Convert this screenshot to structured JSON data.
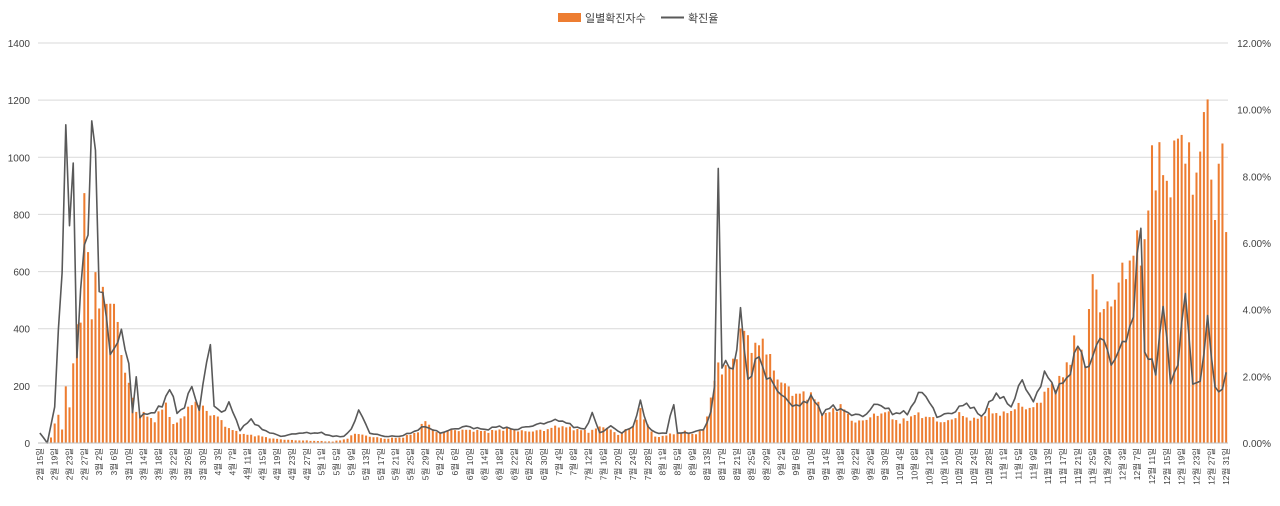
{
  "chart_data": {
    "type": "bar",
    "title": "",
    "series": [
      {
        "name": "일별확진자수",
        "kind": "bar",
        "axis": "left",
        "color": "#ED7D31"
      },
      {
        "name": "확진율",
        "kind": "line",
        "axis": "right",
        "color": "#595959"
      }
    ],
    "left_axis": {
      "min": 0,
      "max": 1400,
      "ticks": [
        "0",
        "200",
        "400",
        "600",
        "800",
        "1000",
        "1200",
        "1400"
      ]
    },
    "right_axis": {
      "min": 0,
      "max": 0.12,
      "ticks": [
        "0.00%",
        "2.00%",
        "4.00%",
        "6.00%",
        "8.00%",
        "10.00%",
        "12.00%"
      ]
    },
    "start_date": "2020-02-15",
    "end_date": "2020-12-31",
    "x_tick_labels": [
      "2월 15일",
      "2월 19일",
      "2월 23일",
      "2월 27일",
      "3월 2일",
      "3월 6일",
      "3월 10일",
      "3월 14일",
      "3월 18일",
      "3월 22일",
      "3월 26일",
      "3월 30일",
      "4월 3일",
      "4월 7일",
      "4월 11일",
      "4월 15일",
      "4월 19일",
      "4월 23일",
      "4월 27일",
      "5월 1일",
      "5월 5일",
      "5월 9일",
      "5월 13일",
      "5월 17일",
      "5월 21일",
      "5월 25일",
      "5월 29일",
      "6월 2일",
      "6월 6일",
      "6월 10일",
      "6월 14일",
      "6월 18일",
      "6월 22일",
      "6월 26일",
      "6월 30일",
      "7월 4일",
      "7월 8일",
      "7월 12일",
      "7월 16일",
      "7월 20일",
      "7월 24일",
      "7월 28일",
      "8월 1일",
      "8월 5일",
      "8월 9일",
      "8월 13일",
      "8월 17일",
      "8월 21일",
      "8월 25일",
      "8월 29일",
      "9월 2일",
      "9월 6일",
      "9월 10일",
      "9월 14일",
      "9월 18일",
      "9월 22일",
      "9월 26일",
      "9월 30일",
      "10월 4일",
      "10월 8일",
      "10월 12일",
      "10월 16일",
      "10월 20일",
      "10월 24일",
      "10월 28일",
      "11월 1일",
      "11월 5일",
      "11월 9일",
      "11월 13일",
      "11월 17일",
      "11월 21일",
      "11월 25일",
      "11월 29일",
      "12월 3일",
      "12월 7일",
      "12월 11일",
      "12월 15일",
      "12월 19일",
      "12월 23일",
      "12월 27일",
      "12월 31일"
    ],
    "daily_cases_knots": [
      [
        "2020-02-15",
        0
      ],
      [
        "2020-02-17",
        0
      ],
      [
        "2020-02-18",
        20
      ],
      [
        "2020-02-19",
        70
      ],
      [
        "2020-02-20",
        90
      ],
      [
        "2020-02-21",
        50
      ],
      [
        "2020-02-22",
        200
      ],
      [
        "2020-02-23",
        130
      ],
      [
        "2020-02-24",
        250
      ],
      [
        "2020-02-25",
        450
      ],
      [
        "2020-02-26",
        420
      ],
      [
        "2020-02-27",
        910
      ],
      [
        "2020-02-28",
        600
      ],
      [
        "2020-02-29",
        470
      ],
      [
        "2020-03-01",
        600
      ],
      [
        "2020-03-02",
        480
      ],
      [
        "2020-03-04",
        520
      ],
      [
        "2020-03-06",
        480
      ],
      [
        "2020-03-08",
        320
      ],
      [
        "2020-03-10",
        200
      ],
      [
        "2020-03-12",
        110
      ],
      [
        "2020-03-14",
        100
      ],
      [
        "2020-03-17",
        80
      ],
      [
        "2020-03-20",
        140
      ],
      [
        "2020-03-22",
        60
      ],
      [
        "2020-03-25",
        100
      ],
      [
        "2020-03-28",
        150
      ],
      [
        "2020-03-31",
        110
      ],
      [
        "2020-04-03",
        90
      ],
      [
        "2020-04-06",
        50
      ],
      [
        "2020-04-10",
        30
      ],
      [
        "2020-04-14",
        25
      ],
      [
        "2020-04-18",
        15
      ],
      [
        "2020-04-23",
        10
      ],
      [
        "2020-04-28",
        8
      ],
      [
        "2020-05-04",
        5
      ],
      [
        "2020-05-08",
        15
      ],
      [
        "2020-05-10",
        35
      ],
      [
        "2020-05-13",
        25
      ],
      [
        "2020-05-18",
        15
      ],
      [
        "2020-05-23",
        20
      ],
      [
        "2020-05-27",
        40
      ],
      [
        "2020-05-29",
        80
      ],
      [
        "2020-06-01",
        35
      ],
      [
        "2020-06-05",
        45
      ],
      [
        "2020-06-10",
        45
      ],
      [
        "2020-06-15",
        40
      ],
      [
        "2020-06-20",
        50
      ],
      [
        "2020-06-25",
        40
      ],
      [
        "2020-06-30",
        45
      ],
      [
        "2020-07-04",
        60
      ],
      [
        "2020-07-08",
        50
      ],
      [
        "2020-07-12",
        40
      ],
      [
        "2020-07-16",
        60
      ],
      [
        "2020-07-20",
        30
      ],
      [
        "2020-07-24",
        60
      ],
      [
        "2020-07-26",
        110
      ],
      [
        "2020-07-30",
        20
      ],
      [
        "2020-08-03",
        30
      ],
      [
        "2020-08-07",
        40
      ],
      [
        "2020-08-10",
        30
      ],
      [
        "2020-08-12",
        50
      ],
      [
        "2020-08-14",
        150
      ],
      [
        "2020-08-16",
        280
      ],
      [
        "2020-08-18",
        250
      ],
      [
        "2020-08-20",
        290
      ],
      [
        "2020-08-23",
        400
      ],
      [
        "2020-08-26",
        320
      ],
      [
        "2020-08-28",
        370
      ],
      [
        "2020-08-31",
        250
      ],
      [
        "2020-09-03",
        200
      ],
      [
        "2020-09-06",
        170
      ],
      [
        "2020-09-10",
        170
      ],
      [
        "2020-09-14",
        100
      ],
      [
        "2020-09-18",
        130
      ],
      [
        "2020-09-22",
        70
      ],
      [
        "2020-09-26",
        90
      ],
      [
        "2020-09-30",
        110
      ],
      [
        "2020-10-04",
        70
      ],
      [
        "2020-10-08",
        100
      ],
      [
        "2020-10-12",
        90
      ],
      [
        "2020-10-16",
        70
      ],
      [
        "2020-10-20",
        100
      ],
      [
        "2020-10-24",
        80
      ],
      [
        "2020-10-28",
        110
      ],
      [
        "2020-11-01",
        100
      ],
      [
        "2020-11-05",
        130
      ],
      [
        "2020-11-09",
        120
      ],
      [
        "2020-11-13",
        190
      ],
      [
        "2020-11-17",
        230
      ],
      [
        "2020-11-20",
        350
      ],
      [
        "2020-11-23",
        300
      ],
      [
        "2020-11-25",
        580
      ],
      [
        "2020-11-28",
        450
      ],
      [
        "2020-12-01",
        520
      ],
      [
        "2020-12-04",
        620
      ],
      [
        "2020-12-07",
        680
      ],
      [
        "2020-12-09",
        700
      ],
      [
        "2020-12-11",
        950
      ],
      [
        "2020-12-13",
        1030
      ],
      [
        "2020-12-15",
        850
      ],
      [
        "2020-12-17",
        1050
      ],
      [
        "2020-12-19",
        1030
      ],
      [
        "2020-12-21",
        1070
      ],
      [
        "2020-12-22",
        820
      ],
      [
        "2020-12-24",
        1060
      ],
      [
        "2020-12-25",
        1210
      ],
      [
        "2020-12-26",
        1100
      ],
      [
        "2020-12-27",
        950
      ],
      [
        "2020-12-28",
        790
      ],
      [
        "2020-12-29",
        1040
      ],
      [
        "2020-12-30",
        940
      ],
      [
        "2020-12-31",
        780
      ]
    ],
    "positivity_rate_knots": [
      [
        "2020-02-15",
        0.003
      ],
      [
        "2020-02-17",
        0.0
      ],
      [
        "2020-02-19",
        0.011
      ],
      [
        "2020-02-21",
        0.053
      ],
      [
        "2020-02-22",
        0.096
      ],
      [
        "2020-02-23",
        0.067
      ],
      [
        "2020-02-24",
        0.078
      ],
      [
        "2020-02-25",
        0.027
      ],
      [
        "2020-02-26",
        0.046
      ],
      [
        "2020-02-27",
        0.061
      ],
      [
        "2020-02-28",
        0.058
      ],
      [
        "2020-02-29",
        0.102
      ],
      [
        "2020-03-01",
        0.088
      ],
      [
        "2020-03-02",
        0.046
      ],
      [
        "2020-03-04",
        0.039
      ],
      [
        "2020-03-05",
        0.027
      ],
      [
        "2020-03-07",
        0.029
      ],
      [
        "2020-03-08",
        0.035
      ],
      [
        "2020-03-10",
        0.023
      ],
      [
        "2020-03-11",
        0.009
      ],
      [
        "2020-03-12",
        0.02
      ],
      [
        "2020-03-13",
        0.008
      ],
      [
        "2020-03-16",
        0.009
      ],
      [
        "2020-03-19",
        0.011
      ],
      [
        "2020-03-21",
        0.017
      ],
      [
        "2020-03-23",
        0.009
      ],
      [
        "2020-03-25",
        0.011
      ],
      [
        "2020-03-27",
        0.017
      ],
      [
        "2020-03-29",
        0.01
      ],
      [
        "2020-04-01",
        0.031
      ],
      [
        "2020-04-02",
        0.011
      ],
      [
        "2020-04-04",
        0.009
      ],
      [
        "2020-04-06",
        0.012
      ],
      [
        "2020-04-09",
        0.004
      ],
      [
        "2020-04-12",
        0.007
      ],
      [
        "2020-04-15",
        0.004
      ],
      [
        "2020-04-20",
        0.002
      ],
      [
        "2020-04-25",
        0.003
      ],
      [
        "2020-05-01",
        0.003
      ],
      [
        "2020-05-04",
        0.002
      ],
      [
        "2020-05-07",
        0.002
      ],
      [
        "2020-05-09",
        0.004
      ],
      [
        "2020-05-11",
        0.01
      ],
      [
        "2020-05-14",
        0.003
      ],
      [
        "2020-05-18",
        0.002
      ],
      [
        "2020-05-22",
        0.002
      ],
      [
        "2020-05-25",
        0.003
      ],
      [
        "2020-05-29",
        0.005
      ],
      [
        "2020-06-02",
        0.003
      ],
      [
        "2020-06-05",
        0.004
      ],
      [
        "2020-06-09",
        0.005
      ],
      [
        "2020-06-14",
        0.004
      ],
      [
        "2020-06-18",
        0.005
      ],
      [
        "2020-06-22",
        0.004
      ],
      [
        "2020-06-26",
        0.005
      ],
      [
        "2020-06-30",
        0.006
      ],
      [
        "2020-07-04",
        0.007
      ],
      [
        "2020-07-08",
        0.005
      ],
      [
        "2020-07-11",
        0.004
      ],
      [
        "2020-07-13",
        0.009
      ],
      [
        "2020-07-15",
        0.003
      ],
      [
        "2020-07-18",
        0.005
      ],
      [
        "2020-07-21",
        0.003
      ],
      [
        "2020-07-24",
        0.005
      ],
      [
        "2020-07-26",
        0.012
      ],
      [
        "2020-07-28",
        0.005
      ],
      [
        "2020-07-30",
        0.003
      ],
      [
        "2020-08-02",
        0.003
      ],
      [
        "2020-08-04",
        0.012
      ],
      [
        "2020-08-05",
        0.003
      ],
      [
        "2020-08-08",
        0.003
      ],
      [
        "2020-08-12",
        0.004
      ],
      [
        "2020-08-14",
        0.009
      ],
      [
        "2020-08-15",
        0.017
      ],
      [
        "2020-08-16",
        0.082
      ],
      [
        "2020-08-17",
        0.024
      ],
      [
        "2020-08-20",
        0.022
      ],
      [
        "2020-08-22",
        0.038
      ],
      [
        "2020-08-24",
        0.019
      ],
      [
        "2020-08-27",
        0.026
      ],
      [
        "2020-08-29",
        0.02
      ],
      [
        "2020-09-01",
        0.016
      ],
      [
        "2020-09-04",
        0.012
      ],
      [
        "2020-09-07",
        0.011
      ],
      [
        "2020-09-10",
        0.014
      ],
      [
        "2020-09-13",
        0.009
      ],
      [
        "2020-09-16",
        0.011
      ],
      [
        "2020-09-20",
        0.009
      ],
      [
        "2020-09-24",
        0.008
      ],
      [
        "2020-09-28",
        0.012
      ],
      [
        "2020-10-02",
        0.009
      ],
      [
        "2020-10-06",
        0.009
      ],
      [
        "2020-10-10",
        0.016
      ],
      [
        "2020-10-14",
        0.008
      ],
      [
        "2020-10-18",
        0.009
      ],
      [
        "2020-10-22",
        0.012
      ],
      [
        "2020-10-26",
        0.008
      ],
      [
        "2020-10-30",
        0.015
      ],
      [
        "2020-11-03",
        0.011
      ],
      [
        "2020-11-06",
        0.019
      ],
      [
        "2020-11-09",
        0.012
      ],
      [
        "2020-11-12",
        0.021
      ],
      [
        "2020-11-15",
        0.016
      ],
      [
        "2020-11-18",
        0.019
      ],
      [
        "2020-11-21",
        0.029
      ],
      [
        "2020-11-24",
        0.022
      ],
      [
        "2020-11-27",
        0.033
      ],
      [
        "2020-11-30",
        0.024
      ],
      [
        "2020-12-03",
        0.029
      ],
      [
        "2020-12-06",
        0.038
      ],
      [
        "2020-12-08",
        0.069
      ],
      [
        "2020-12-09",
        0.027
      ],
      [
        "2020-12-12",
        0.022
      ],
      [
        "2020-12-14",
        0.041
      ],
      [
        "2020-12-16",
        0.019
      ],
      [
        "2020-12-18",
        0.023
      ],
      [
        "2020-12-20",
        0.047
      ],
      [
        "2020-12-22",
        0.017
      ],
      [
        "2020-12-24",
        0.019
      ],
      [
        "2020-12-26",
        0.036
      ],
      [
        "2020-12-28",
        0.017
      ],
      [
        "2020-12-30",
        0.015
      ],
      [
        "2020-12-31",
        0.022
      ]
    ]
  }
}
